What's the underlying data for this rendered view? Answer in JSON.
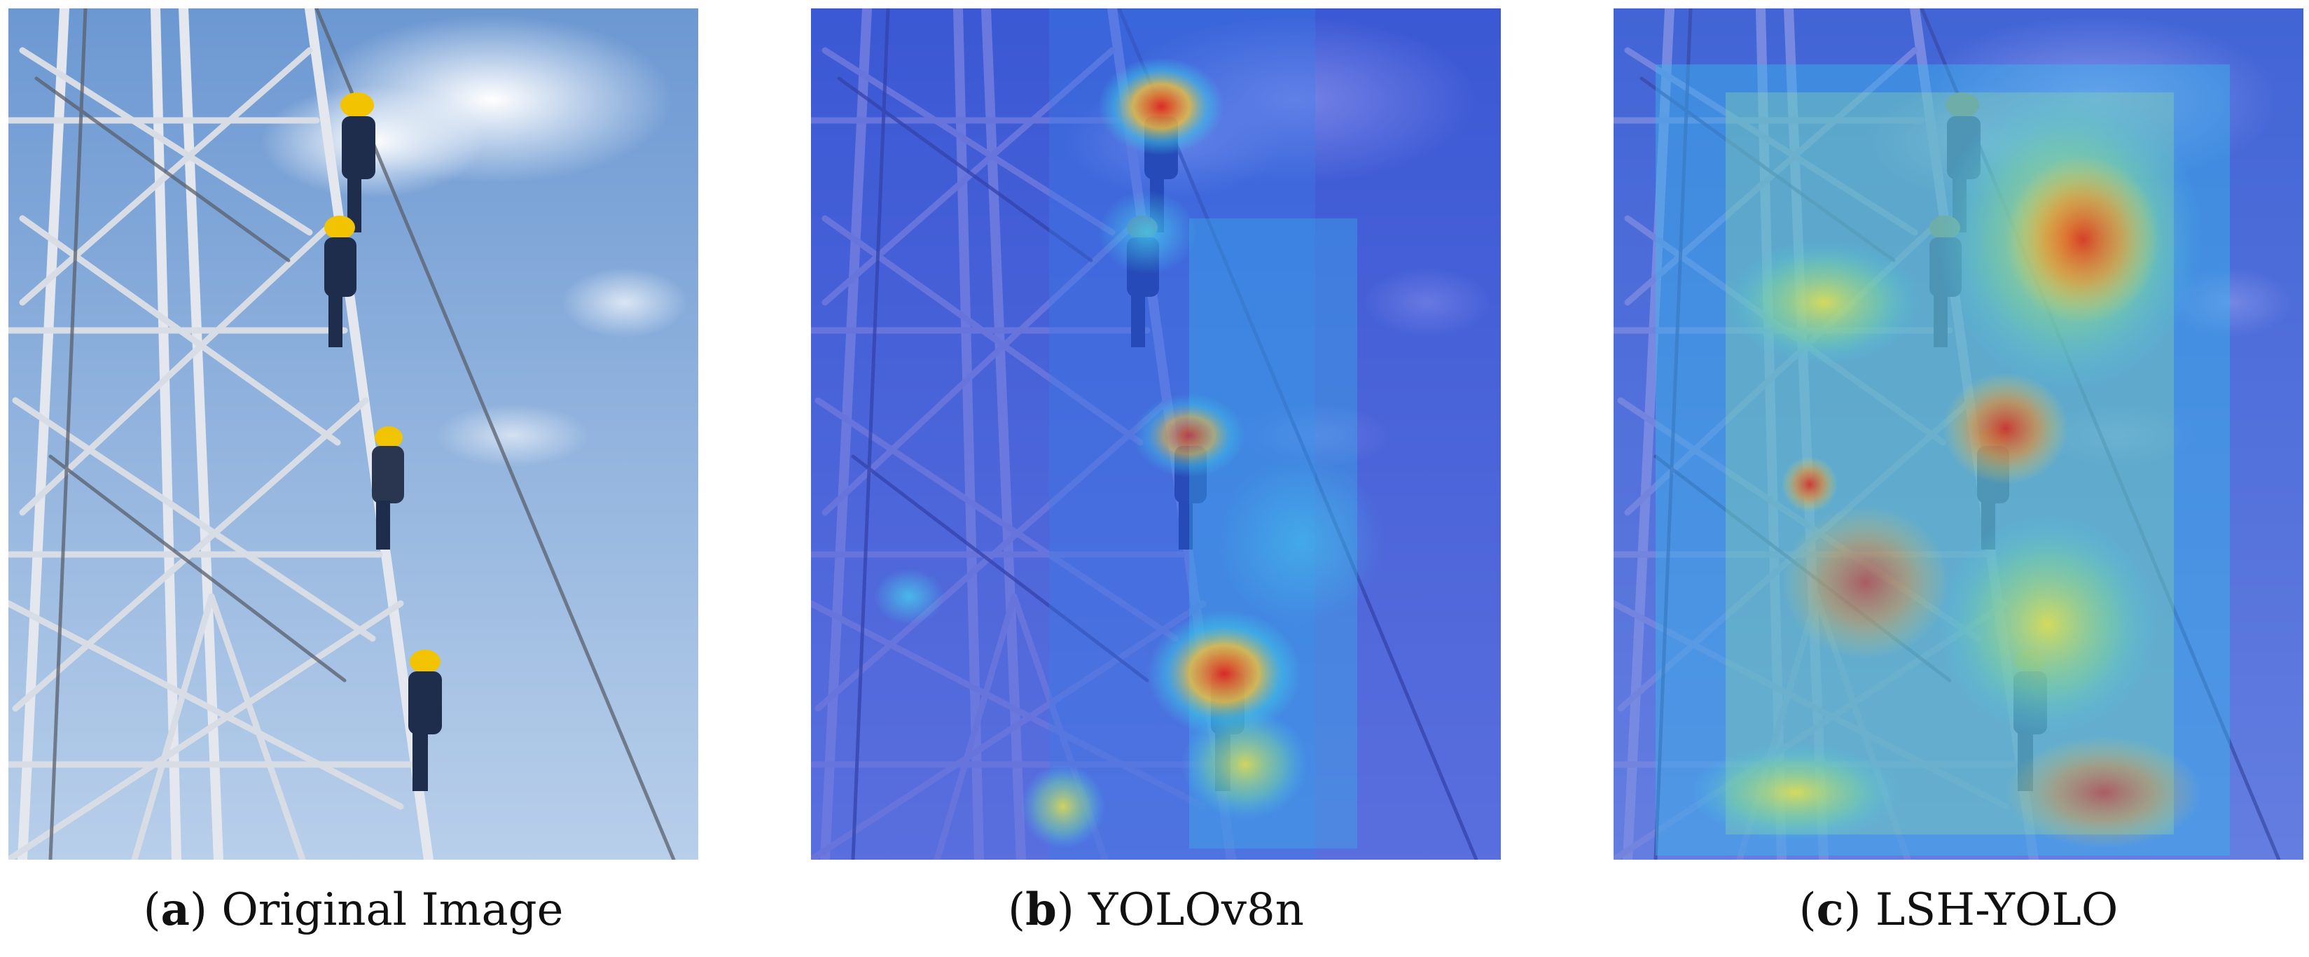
{
  "figure": {
    "panels": [
      {
        "letter": "a",
        "title": "Original Image"
      },
      {
        "letter": "b",
        "title": "YOLOv8n"
      },
      {
        "letter": "c",
        "title": "LSH-YOLO"
      }
    ]
  },
  "colors": {
    "sky_top": "#6f9bd4",
    "sky_bottom": "#b6cdea",
    "cloud": "#f4f6fa",
    "steel": "#e6e9ee",
    "steel_shadow": "#5b6472",
    "helmet": "#f2c300",
    "uniform": "#1d2c4a",
    "heat_low": "#1a2fd6",
    "heat_mid": "#36c4e8",
    "heat_warm": "#f0e64a",
    "heat_hot": "#e2261f"
  }
}
